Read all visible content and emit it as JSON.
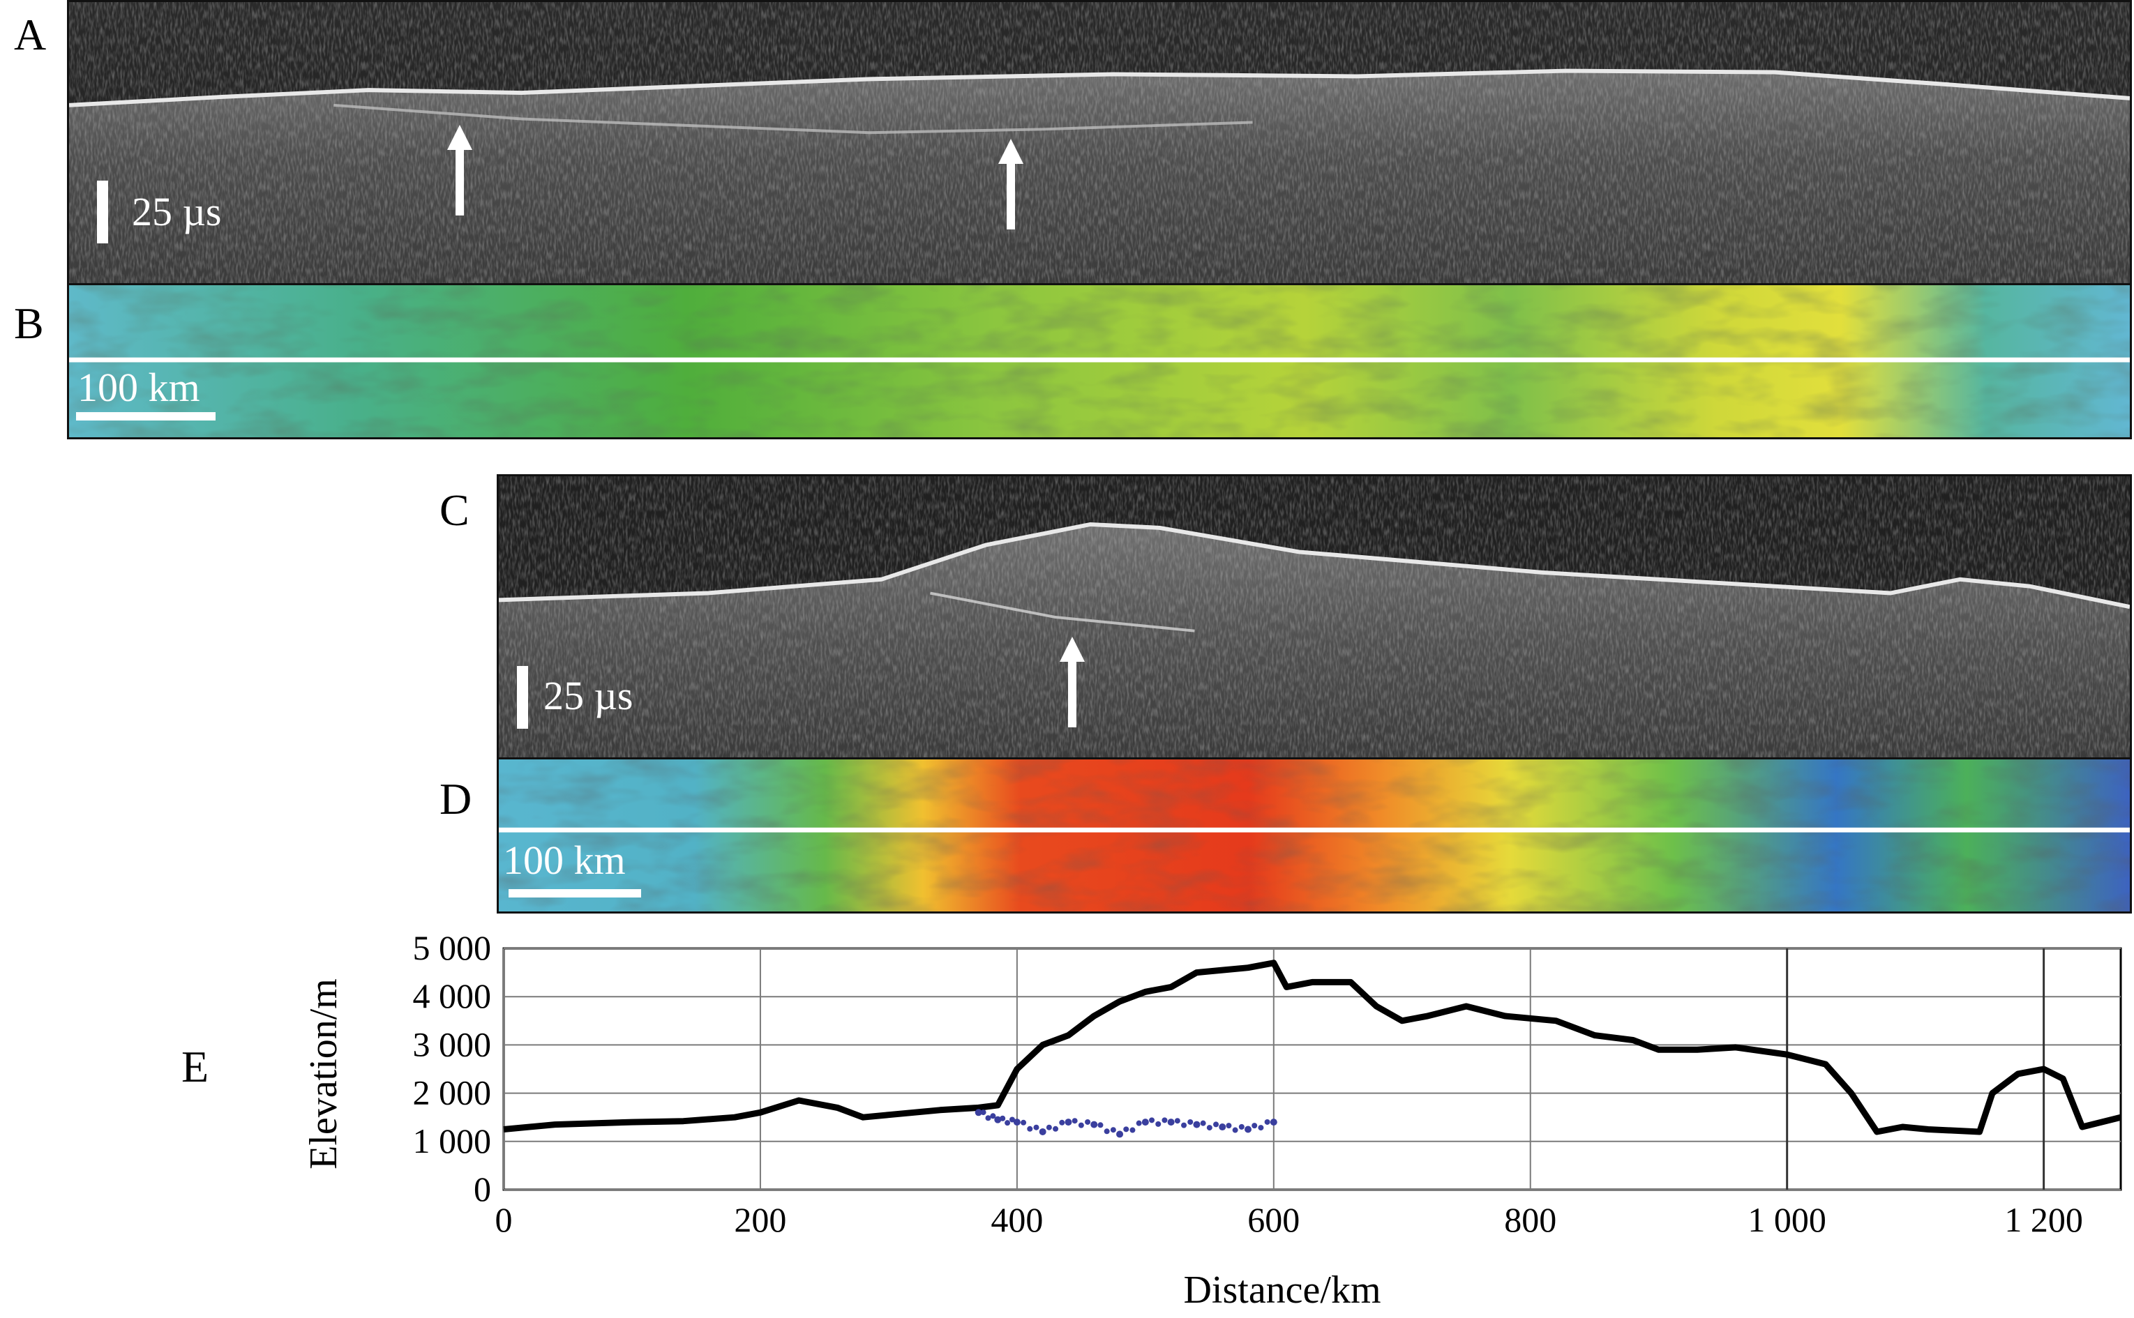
{
  "panels": {
    "a": {
      "letter": "A",
      "scale_label": "25 µs"
    },
    "b": {
      "letter": "B",
      "scale_label": "100 km"
    },
    "c": {
      "letter": "C",
      "scale_label": "25 µs"
    },
    "d": {
      "letter": "D",
      "scale_label": "100 km"
    },
    "e": {
      "letter": "E"
    }
  },
  "chart_data": {
    "type": "line",
    "xlabel": "Distance/km",
    "ylabel": "Elevation/m",
    "xlim": [
      0,
      1260
    ],
    "ylim": [
      0,
      5000
    ],
    "x_ticks": [
      0,
      200,
      400,
      600,
      800,
      1000,
      1200
    ],
    "x_tick_labels": [
      "0",
      "200",
      "400",
      "600",
      "800",
      "1 000",
      "1 200"
    ],
    "y_ticks": [
      0,
      1000,
      2000,
      3000,
      4000,
      5000
    ],
    "y_tick_labels": [
      "0",
      "1 000",
      "2 000",
      "3 000",
      "4 000",
      "5 000"
    ],
    "grid": true,
    "series": [
      {
        "color": "#000000",
        "x": [
          0,
          40,
          100,
          140,
          180,
          200,
          230,
          260,
          280,
          300,
          340,
          370,
          385,
          400,
          420,
          440,
          460,
          480,
          500,
          520,
          540,
          560,
          580,
          600,
          610,
          630,
          660,
          680,
          700,
          720,
          750,
          780,
          820,
          850,
          880,
          900,
          930,
          960,
          1000,
          1030,
          1050,
          1070,
          1090,
          1110,
          1150,
          1160,
          1180,
          1200,
          1215,
          1230,
          1260
        ],
        "y": [
          1250,
          1350,
          1400,
          1420,
          1500,
          1600,
          1850,
          1700,
          1500,
          1550,
          1650,
          1700,
          1750,
          2500,
          3000,
          3200,
          3600,
          3900,
          4100,
          4200,
          4500,
          4550,
          4600,
          4700,
          4200,
          4300,
          4300,
          3800,
          3500,
          3600,
          3800,
          3600,
          3500,
          3200,
          3100,
          2900,
          2900,
          2950,
          2800,
          2600,
          2000,
          1200,
          1300,
          1250,
          1200,
          2000,
          2400,
          2500,
          2300,
          1300,
          1500
        ]
      },
      {
        "color": "#3a3f9e",
        "style": "dotted",
        "x": [
          370,
          385,
          400,
          420,
          440,
          460,
          480,
          500,
          520,
          540,
          560,
          580,
          600
        ],
        "y": [
          1600,
          1450,
          1400,
          1200,
          1400,
          1350,
          1150,
          1400,
          1400,
          1350,
          1300,
          1250,
          1400
        ]
      }
    ]
  }
}
